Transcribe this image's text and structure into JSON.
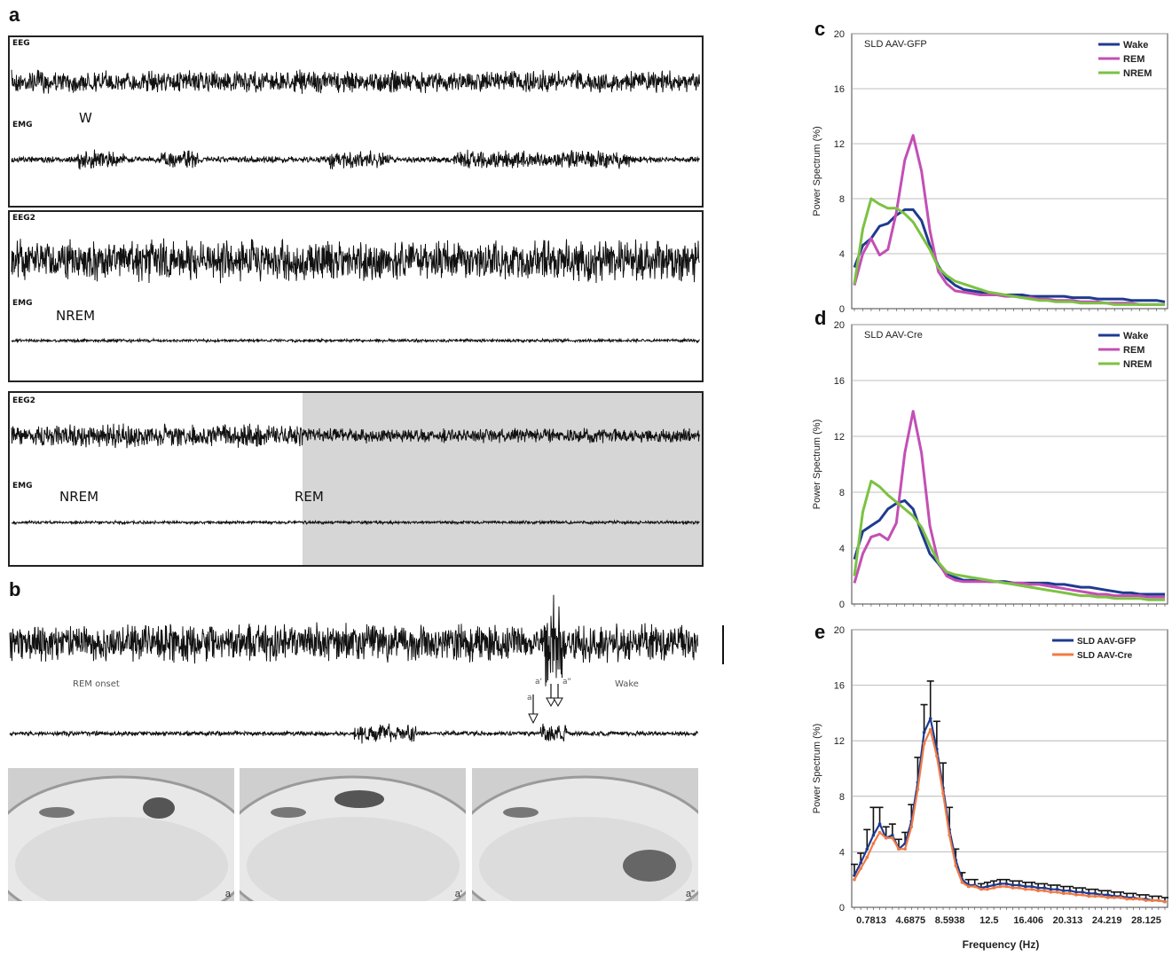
{
  "panel_labels": {
    "a": "a",
    "b": "b",
    "c": "c",
    "d": "d",
    "e": "e"
  },
  "panel_a": {
    "boxes": [
      {
        "eeg_label": "EEG",
        "emg_label": "EMG",
        "states": [
          "W"
        ]
      },
      {
        "eeg_label": "EEG2",
        "emg_label": "EMG",
        "states": [
          "NREM"
        ]
      },
      {
        "eeg_label": "EEG2",
        "emg_label": "EMG",
        "states": [
          "NREM",
          "REM"
        ]
      }
    ]
  },
  "panel_b": {
    "left_label": "REM onset",
    "right_label": "Wake",
    "arrow_labels": [
      "a",
      "a'",
      "a\""
    ],
    "photo_labels": [
      "a",
      "a'",
      "a\""
    ]
  },
  "chart_data": [
    {
      "type": "line",
      "panel": "c",
      "annotation": "SLD AAV-GFP",
      "ylabel": "Power Spectrum (%)",
      "ylim": [
        0,
        20
      ],
      "yticks": [
        0,
        4,
        8,
        12,
        16,
        20
      ],
      "grid": true,
      "legend": "top-right",
      "colors": {
        "Wake": "#1f3b8f",
        "REM": "#c34fb5",
        "NREM": "#7cc242"
      },
      "x": [
        1,
        2,
        3,
        4,
        5,
        6,
        7,
        8,
        9,
        10,
        11,
        12,
        13,
        14,
        15,
        16,
        17,
        18,
        19,
        20,
        21,
        22,
        23,
        24,
        25,
        26,
        27,
        28,
        29,
        30,
        31,
        32,
        33,
        34,
        35,
        36,
        37,
        38
      ],
      "series": [
        {
          "name": "Wake",
          "values": [
            3.0,
            4.6,
            5.1,
            6.0,
            6.2,
            6.8,
            7.2,
            7.2,
            6.4,
            4.6,
            3.1,
            2.2,
            1.7,
            1.4,
            1.3,
            1.2,
            1.1,
            1.0,
            1.0,
            1.0,
            1.0,
            0.9,
            0.9,
            0.9,
            0.9,
            0.9,
            0.8,
            0.8,
            0.8,
            0.7,
            0.7,
            0.7,
            0.7,
            0.6,
            0.6,
            0.6,
            0.6,
            0.5
          ]
        },
        {
          "name": "REM",
          "values": [
            1.7,
            4.0,
            5.1,
            3.9,
            4.3,
            7.0,
            10.8,
            12.6,
            10.0,
            5.7,
            2.7,
            1.8,
            1.3,
            1.2,
            1.1,
            1.0,
            1.0,
            1.0,
            0.9,
            0.9,
            0.8,
            0.8,
            0.7,
            0.7,
            0.6,
            0.6,
            0.6,
            0.5,
            0.5,
            0.5,
            0.4,
            0.4,
            0.4,
            0.4,
            0.3,
            0.3,
            0.3,
            0.3
          ]
        },
        {
          "name": "NREM",
          "values": [
            1.8,
            5.8,
            8.0,
            7.6,
            7.3,
            7.3,
            6.9,
            6.3,
            5.3,
            4.3,
            3.0,
            2.4,
            2.0,
            1.8,
            1.6,
            1.4,
            1.2,
            1.1,
            1.0,
            0.9,
            0.8,
            0.7,
            0.6,
            0.6,
            0.5,
            0.5,
            0.5,
            0.4,
            0.4,
            0.4,
            0.4,
            0.3,
            0.3,
            0.3,
            0.3,
            0.3,
            0.3,
            0.3
          ]
        }
      ]
    },
    {
      "type": "line",
      "panel": "d",
      "annotation": "SLD AAV-Cre",
      "ylabel": "Power Spectrum (%)",
      "ylim": [
        0,
        20
      ],
      "yticks": [
        0,
        4,
        8,
        12,
        16,
        20
      ],
      "grid": true,
      "legend": "top-right",
      "colors": {
        "Wake": "#1f3b8f",
        "REM": "#c34fb5",
        "NREM": "#7cc242"
      },
      "x": [
        1,
        2,
        3,
        4,
        5,
        6,
        7,
        8,
        9,
        10,
        11,
        12,
        13,
        14,
        15,
        16,
        17,
        18,
        19,
        20,
        21,
        22,
        23,
        24,
        25,
        26,
        27,
        28,
        29,
        30,
        31,
        32,
        33,
        34,
        35,
        36,
        37,
        38
      ],
      "series": [
        {
          "name": "Wake",
          "values": [
            3.2,
            5.2,
            5.6,
            6.0,
            6.8,
            7.2,
            7.4,
            6.8,
            5.1,
            3.6,
            2.9,
            2.1,
            1.9,
            1.7,
            1.7,
            1.7,
            1.6,
            1.6,
            1.6,
            1.5,
            1.5,
            1.5,
            1.5,
            1.5,
            1.4,
            1.4,
            1.3,
            1.2,
            1.2,
            1.1,
            1.0,
            0.9,
            0.8,
            0.8,
            0.7,
            0.7,
            0.7,
            0.7
          ]
        },
        {
          "name": "REM",
          "values": [
            1.5,
            3.6,
            4.8,
            5.0,
            4.6,
            5.8,
            10.8,
            13.8,
            10.8,
            5.6,
            3.0,
            2.0,
            1.7,
            1.6,
            1.6,
            1.6,
            1.6,
            1.6,
            1.5,
            1.5,
            1.5,
            1.4,
            1.4,
            1.3,
            1.2,
            1.1,
            1.0,
            0.9,
            0.8,
            0.7,
            0.7,
            0.6,
            0.6,
            0.6,
            0.6,
            0.5,
            0.5,
            0.5
          ]
        },
        {
          "name": "NREM",
          "values": [
            2.0,
            6.6,
            8.8,
            8.4,
            7.8,
            7.3,
            6.8,
            6.3,
            5.5,
            4.2,
            3.0,
            2.3,
            2.1,
            2.0,
            1.9,
            1.8,
            1.7,
            1.6,
            1.5,
            1.4,
            1.3,
            1.2,
            1.1,
            1.0,
            0.9,
            0.8,
            0.7,
            0.6,
            0.6,
            0.5,
            0.5,
            0.4,
            0.4,
            0.4,
            0.4,
            0.3,
            0.3,
            0.3
          ]
        }
      ]
    },
    {
      "type": "line",
      "panel": "e",
      "ylabel": "Power Spectrum (%)",
      "xlabel": "Frequency (Hz)",
      "ylim": [
        0,
        20
      ],
      "yticks": [
        0,
        4,
        8,
        12,
        16,
        20
      ],
      "x_tick_labels": [
        "0.7813",
        "4.6875",
        "8.5938",
        "12.5",
        "16.406",
        "20.313",
        "24.219",
        "28.125"
      ],
      "grid": true,
      "legend": "top-right",
      "error_bars": true,
      "colors": {
        "SLD AAV-GFP": "#1f3b8f",
        "SLD AAV-Cre": "#f07a45"
      },
      "x": [
        1,
        2,
        3,
        4,
        5,
        6,
        7,
        8,
        9,
        10,
        11,
        12,
        13,
        14,
        15,
        16,
        17,
        18,
        19,
        20,
        21,
        22,
        23,
        24,
        25,
        26,
        27,
        28,
        29,
        30,
        31,
        32,
        33,
        34,
        35,
        36,
        37,
        38,
        39,
        40,
        41,
        42,
        43,
        44,
        45,
        46,
        47,
        48,
        49,
        50
      ],
      "series": [
        {
          "name": "SLD AAV-GFP",
          "values": [
            2.3,
            3.2,
            4.2,
            5.2,
            6.0,
            5.0,
            5.2,
            4.2,
            4.6,
            6.2,
            9.0,
            12.6,
            13.6,
            11.4,
            8.6,
            5.6,
            3.4,
            2.0,
            1.6,
            1.6,
            1.4,
            1.5,
            1.6,
            1.7,
            1.7,
            1.6,
            1.6,
            1.5,
            1.5,
            1.4,
            1.4,
            1.3,
            1.3,
            1.2,
            1.2,
            1.1,
            1.1,
            1.0,
            1.0,
            0.9,
            0.9,
            0.8,
            0.8,
            0.7,
            0.7,
            0.6,
            0.6,
            0.5,
            0.5,
            0.4
          ],
          "errors": [
            0.8,
            0.7,
            1.4,
            2.0,
            1.2,
            0.8,
            0.8,
            0.7,
            0.8,
            1.2,
            1.8,
            2.0,
            2.7,
            2.0,
            1.8,
            1.6,
            0.8,
            0.5,
            0.4,
            0.4,
            0.3,
            0.3,
            0.3,
            0.3,
            0.3,
            0.3,
            0.3,
            0.3,
            0.3,
            0.3,
            0.3,
            0.3,
            0.3,
            0.3,
            0.3,
            0.3,
            0.3,
            0.3,
            0.3,
            0.3,
            0.3,
            0.3,
            0.3,
            0.3,
            0.3,
            0.3,
            0.3,
            0.3,
            0.3,
            0.3
          ]
        },
        {
          "name": "SLD AAV-Cre",
          "values": [
            2.0,
            2.8,
            3.6,
            4.6,
            5.4,
            5.0,
            5.0,
            4.2,
            4.2,
            5.8,
            8.5,
            11.8,
            12.8,
            10.9,
            8.2,
            5.2,
            3.0,
            1.8,
            1.5,
            1.5,
            1.3,
            1.3,
            1.4,
            1.5,
            1.5,
            1.4,
            1.4,
            1.3,
            1.3,
            1.2,
            1.2,
            1.1,
            1.1,
            1.0,
            1.0,
            0.9,
            0.9,
            0.8,
            0.8,
            0.8,
            0.7,
            0.7,
            0.7,
            0.6,
            0.6,
            0.6,
            0.5,
            0.5,
            0.5,
            0.4
          ]
        }
      ]
    }
  ]
}
